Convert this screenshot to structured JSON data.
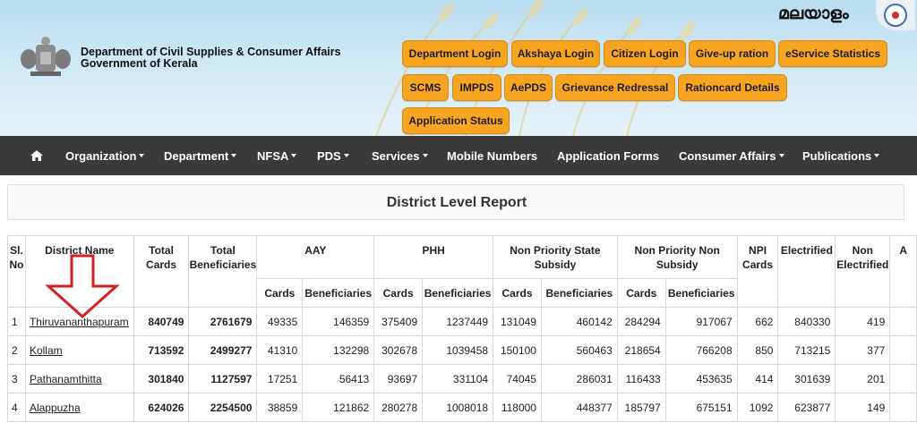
{
  "header": {
    "dept_line1": "Department of Civil Supplies & Consumer Affairs",
    "dept_line2": "Government of Kerala",
    "language": "മലയാളം",
    "buttons": {
      "department_login": "Department Login",
      "akshaya_login": "Akshaya Login",
      "citizen_login": "Citizen Login",
      "give_up_ration": "Give-up ration",
      "eservice_statistics": "eService Statistics",
      "scms": "SCMS",
      "impds": "IMPDS",
      "aepds": "AePDS",
      "grievance_redressal": "Grievance Redressal",
      "rationcard_details": "Rationcard Details",
      "application_status": "Application Status"
    }
  },
  "nav": {
    "organization": "Organization",
    "department": "Department",
    "nfsa": "NFSA",
    "pds": "PDS",
    "services": "Services",
    "mobile_numbers": "Mobile Numbers",
    "application_forms": "Application Forms",
    "consumer_affairs": "Consumer Affairs",
    "publications": "Publications"
  },
  "report": {
    "title": "District Level Report",
    "headers": {
      "sl_no": "Sl. No",
      "district_name": "District Name",
      "total_cards": "Total Cards",
      "total_beneficiaries": "Total Beneficiaries",
      "aay": "AAY",
      "phh": "PHH",
      "nps": "Non Priority State Subsidy",
      "npns": "Non Priority Non Subsidy",
      "npi_cards": "NPI Cards",
      "electrified": "Electrified",
      "non_electrified": "Non Electrified",
      "cut_col": "A",
      "cards": "Cards",
      "beneficiaries": "Beneficiaries"
    },
    "rows": [
      {
        "sl": "1",
        "district": "Thiruvananthapuram",
        "total_cards": "840749",
        "total_beneficiaries": "2761679",
        "aay_cards": "49335",
        "aay_ben": "146359",
        "phh_cards": "375409",
        "phh_ben": "1237449",
        "nps_cards": "131049",
        "nps_ben": "460142",
        "npns_cards": "284294",
        "npns_ben": "917067",
        "npi": "662",
        "electrified": "840330",
        "non_electrified": "419"
      },
      {
        "sl": "2",
        "district": "Kollam",
        "total_cards": "713592",
        "total_beneficiaries": "2499277",
        "aay_cards": "41310",
        "aay_ben": "132298",
        "phh_cards": "302678",
        "phh_ben": "1039458",
        "nps_cards": "150100",
        "nps_ben": "560463",
        "npns_cards": "218654",
        "npns_ben": "766208",
        "npi": "850",
        "electrified": "713215",
        "non_electrified": "377"
      },
      {
        "sl": "3",
        "district": "Pathanamthitta",
        "total_cards": "301840",
        "total_beneficiaries": "1127597",
        "aay_cards": "17251",
        "aay_ben": "56413",
        "phh_cards": "93697",
        "phh_ben": "331104",
        "nps_cards": "74045",
        "nps_ben": "286031",
        "npns_cards": "116433",
        "npns_ben": "453635",
        "npi": "414",
        "electrified": "301639",
        "non_electrified": "201"
      },
      {
        "sl": "4",
        "district": "Alappuzha",
        "total_cards": "624026",
        "total_beneficiaries": "2254500",
        "aay_cards": "38859",
        "aay_ben": "121862",
        "phh_cards": "280278",
        "phh_ben": "1008018",
        "nps_cards": "118000",
        "nps_ben": "448377",
        "npns_cards": "185797",
        "npns_ben": "675151",
        "npi": "1092",
        "electrified": "623877",
        "non_electrified": "149"
      }
    ]
  },
  "colors": {
    "button_orange": "#f7a520",
    "navbar": "#3a3a3a",
    "arrow_red": "#d42020"
  }
}
